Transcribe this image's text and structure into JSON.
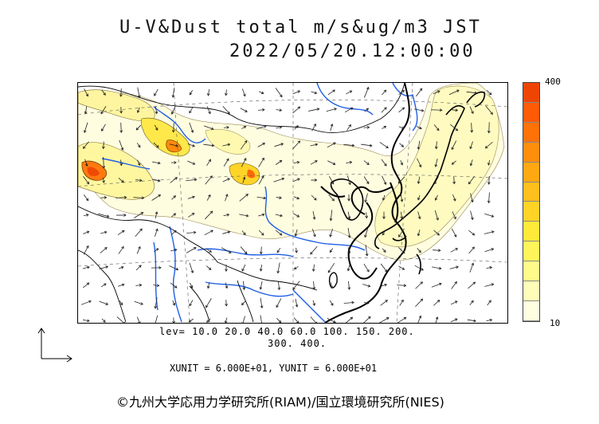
{
  "title": {
    "line1": "U-V&Dust total m/s&ug/m3 JST",
    "line2": "2022/05/20.12:00:00"
  },
  "colorbar": {
    "max_label": "400",
    "min_label": "10",
    "colors": [
      "#fffee0",
      "#fffdb8",
      "#fffb8a",
      "#fff55a",
      "#ffea3a",
      "#ffd426",
      "#ffbf1c",
      "#ffa812",
      "#ff8e0c",
      "#ff7208",
      "#ff5a06",
      "#ee4504"
    ]
  },
  "legend": {
    "levels_line1": "lev= 10.0 20.0 40.0 60.0 100. 150. 200.",
    "levels_line2": "300. 400."
  },
  "units": {
    "text": "XUNIT = 6.000E+01, YUNIT = 6.000E+01"
  },
  "copyright": {
    "text": "©九州大学応用力学研究所(RIAM)/国立環境研究所(NIES)"
  },
  "map": {
    "region": "East Asia",
    "coastline_color": "#000000",
    "river_color": "#1f5fe6",
    "border_color": "#000000"
  }
}
